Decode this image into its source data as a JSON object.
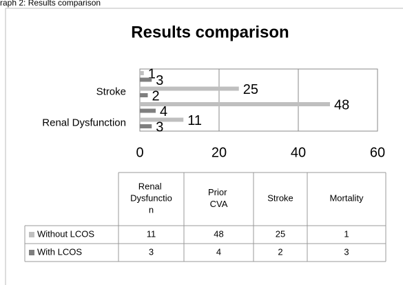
{
  "caption": "raph 2: Results comparison",
  "chart_data": {
    "type": "bar",
    "orientation": "horizontal",
    "title": "Results comparison",
    "categories": [
      "Renal Dysfunction",
      "Prior CVA",
      "Stroke",
      "Mortality"
    ],
    "series": [
      {
        "name": "Without LCOS",
        "color": "#bfbfbf",
        "values": [
          11,
          48,
          25,
          1
        ]
      },
      {
        "name": "With LCOS",
        "color": "#7f7f7f",
        "values": [
          3,
          4,
          2,
          3
        ]
      }
    ],
    "xlim": [
      0,
      60
    ],
    "xticks": [
      0,
      20,
      40,
      60
    ],
    "grid": true,
    "ytick_label_step": 2,
    "data_table": true
  }
}
